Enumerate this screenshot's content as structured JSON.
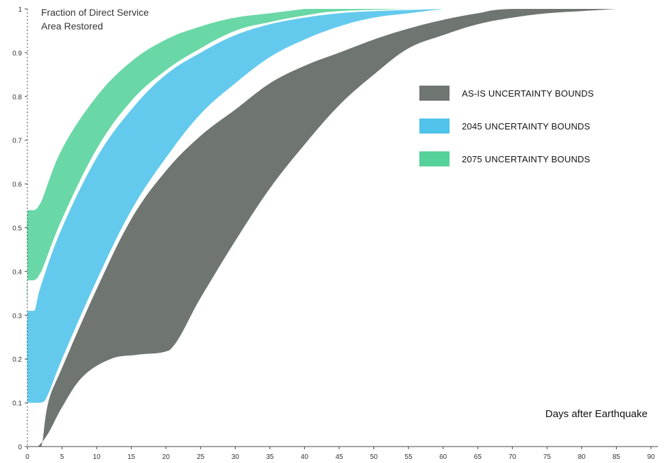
{
  "chart_data": {
    "type": "area",
    "ylabel_lines": [
      "Fraction of Direct Service",
      "Area Restored"
    ],
    "xlabel": "Days after Earthquake",
    "xlim": [
      0,
      90
    ],
    "ylim": [
      0,
      1
    ],
    "x_ticks": [
      0,
      5,
      10,
      15,
      20,
      25,
      30,
      35,
      40,
      45,
      50,
      55,
      60,
      65,
      70,
      75,
      80,
      85,
      90
    ],
    "x_tick_labels": [
      "0",
      "5",
      "10",
      "15",
      "20",
      "25",
      "30",
      "35",
      "40",
      "45",
      "50",
      "55",
      "60",
      "65",
      "70",
      "75",
      "80",
      "85",
      "90"
    ],
    "y_ticks": [
      0,
      0.1,
      0.2,
      0.3,
      0.4,
      0.5,
      0.6,
      0.7,
      0.8,
      0.9,
      1
    ],
    "y_tick_labels": [
      "0",
      "0.1",
      "0.2",
      "0.3",
      "0.4",
      "0.5",
      "0.6",
      "0.7",
      "0.8",
      "0.9",
      "1"
    ],
    "legend_position": "right",
    "series": [
      {
        "name": "AS-IS UNCERTAINTY BOUNDS",
        "color": "#6f7570",
        "upper": [
          [
            1,
            0
          ],
          [
            2,
            0
          ],
          [
            3,
            0.1
          ],
          [
            5,
            0.18
          ],
          [
            10,
            0.36
          ],
          [
            15,
            0.52
          ],
          [
            20,
            0.63
          ],
          [
            25,
            0.71
          ],
          [
            30,
            0.77
          ],
          [
            35,
            0.83
          ],
          [
            40,
            0.87
          ],
          [
            45,
            0.9
          ],
          [
            50,
            0.93
          ],
          [
            55,
            0.955
          ],
          [
            60,
            0.975
          ],
          [
            65,
            0.99
          ],
          [
            70,
            1.0
          ],
          [
            85,
            1.0
          ]
        ],
        "lower": [
          [
            1,
            0
          ],
          [
            1.5,
            0
          ],
          [
            3,
            0.03
          ],
          [
            5,
            0.09
          ],
          [
            8,
            0.16
          ],
          [
            12,
            0.2
          ],
          [
            16,
            0.21
          ],
          [
            20.5,
            0.22
          ],
          [
            25,
            0.34
          ],
          [
            30,
            0.47
          ],
          [
            35,
            0.59
          ],
          [
            40,
            0.69
          ],
          [
            45,
            0.78
          ],
          [
            50,
            0.85
          ],
          [
            55,
            0.91
          ],
          [
            60,
            0.94
          ],
          [
            65,
            0.965
          ],
          [
            70,
            0.98
          ],
          [
            75,
            0.99
          ],
          [
            80,
            0.995
          ],
          [
            85,
            1.0
          ]
        ]
      },
      {
        "name": "2045 UNCERTAINTY BOUNDS",
        "color": "#4fc3ea",
        "upper": [
          [
            0,
            0.1
          ],
          [
            0,
            0.31
          ],
          [
            1,
            0.31
          ],
          [
            2,
            0.37
          ],
          [
            5,
            0.5
          ],
          [
            10,
            0.66
          ],
          [
            15,
            0.77
          ],
          [
            20,
            0.85
          ],
          [
            25,
            0.9
          ],
          [
            30,
            0.94
          ],
          [
            35,
            0.965
          ],
          [
            40,
            0.98
          ],
          [
            45,
            0.99
          ],
          [
            50,
            0.995
          ],
          [
            60,
            1.0
          ]
        ],
        "lower": [
          [
            0,
            0.1
          ],
          [
            2,
            0.1
          ],
          [
            3,
            0.12
          ],
          [
            5,
            0.2
          ],
          [
            10,
            0.38
          ],
          [
            15,
            0.54
          ],
          [
            20,
            0.66
          ],
          [
            25,
            0.76
          ],
          [
            30,
            0.83
          ],
          [
            35,
            0.89
          ],
          [
            40,
            0.93
          ],
          [
            45,
            0.96
          ],
          [
            50,
            0.98
          ],
          [
            55,
            0.99
          ],
          [
            60,
            1.0
          ]
        ]
      },
      {
        "name": "2075 UNCERTAINTY BOUNDS",
        "color": "#55d19a",
        "upper": [
          [
            0,
            0.38
          ],
          [
            0,
            0.54
          ],
          [
            1,
            0.54
          ],
          [
            2,
            0.56
          ],
          [
            5,
            0.68
          ],
          [
            10,
            0.8
          ],
          [
            15,
            0.88
          ],
          [
            20,
            0.93
          ],
          [
            25,
            0.96
          ],
          [
            30,
            0.98
          ],
          [
            35,
            0.99
          ],
          [
            40,
            1.0
          ]
        ],
        "lower": [
          [
            0,
            0.31
          ],
          [
            0,
            0.38
          ],
          [
            1,
            0.38
          ],
          [
            2,
            0.4
          ],
          [
            5,
            0.52
          ],
          [
            10,
            0.68
          ],
          [
            15,
            0.79
          ],
          [
            20,
            0.86
          ],
          [
            25,
            0.91
          ],
          [
            30,
            0.95
          ],
          [
            35,
            0.97
          ],
          [
            40,
            0.985
          ],
          [
            45,
            0.995
          ],
          [
            55,
            1.0
          ]
        ]
      }
    ]
  }
}
